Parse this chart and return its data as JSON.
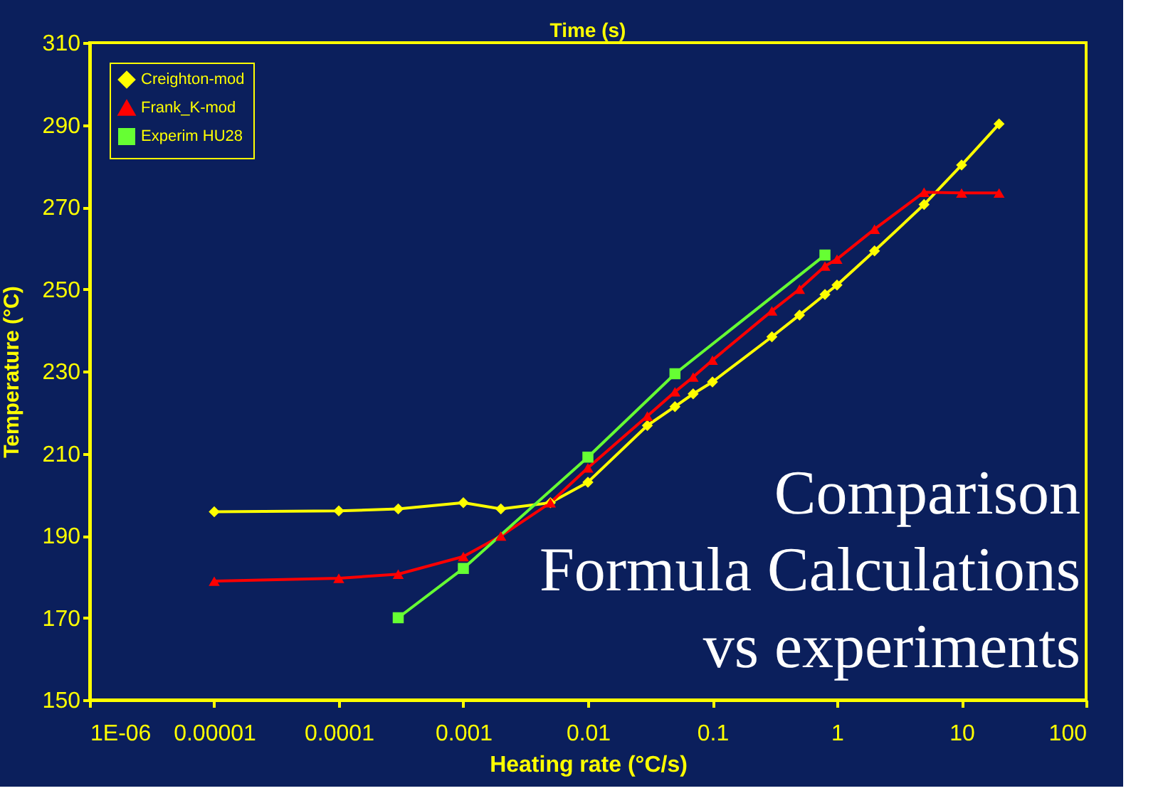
{
  "chart_data": {
    "type": "line",
    "x2label": "Time (s)",
    "xlabel": "Heating rate (°C/s)",
    "ylabel": "Temperature (°C)",
    "log": "x",
    "xlim": [
      1e-06,
      100
    ],
    "xticks": [
      {
        "value": 1e-06,
        "label": "1E-06"
      },
      {
        "value": 1e-05,
        "label": "0.00001"
      },
      0.0001,
      0.001,
      0.01,
      0.1,
      1,
      10,
      100
    ],
    "ylim": [
      150,
      310
    ],
    "yticks": [
      150,
      170,
      190,
      210,
      230,
      250,
      270,
      290,
      310
    ],
    "grid": false,
    "legend": "top left",
    "line_style": "solid",
    "annotations": [
      "Comparison\nFormula Calculations\nvs experiments"
    ],
    "series": [
      {
        "name": "Creighton-mod",
        "color": "#ffff00",
        "marker": "diamond",
        "x": [
          1e-05,
          0.0001,
          0.0003,
          0.001,
          0.002,
          0.005,
          0.01,
          0.03,
          0.05,
          0.07,
          0.1,
          0.3,
          0.5,
          0.8,
          1,
          2,
          5,
          10,
          20
        ],
        "values": [
          195.8,
          196,
          196.5,
          198,
          196.5,
          198,
          203,
          216.8,
          221.4,
          224.5,
          227.4,
          238.4,
          243.7,
          248.7,
          251,
          259.3,
          270.6,
          280.2,
          290.2
        ]
      },
      {
        "name": "Frank_K-mod",
        "color": "#ff0000",
        "marker": "triangle",
        "x": [
          1e-05,
          0.0001,
          0.0003,
          0.001,
          0.002,
          0.005,
          0.01,
          0.03,
          0.05,
          0.07,
          0.1,
          0.3,
          0.5,
          0.8,
          1,
          2,
          5,
          10,
          20
        ],
        "values": [
          178.9,
          179.6,
          180.6,
          184.9,
          189.9,
          198,
          206.5,
          219.1,
          225,
          228.6,
          232.7,
          244.7,
          250,
          255.6,
          257.3,
          264.6,
          273.6,
          273.4,
          273.4
        ]
      },
      {
        "name": "Experim HU28",
        "color": "#66ff33",
        "marker": "square",
        "x": [
          0.0003,
          0.001,
          0.01,
          0.05,
          0.8
        ],
        "values": [
          170,
          182,
          209.1,
          229.4,
          258.3
        ]
      }
    ]
  }
}
